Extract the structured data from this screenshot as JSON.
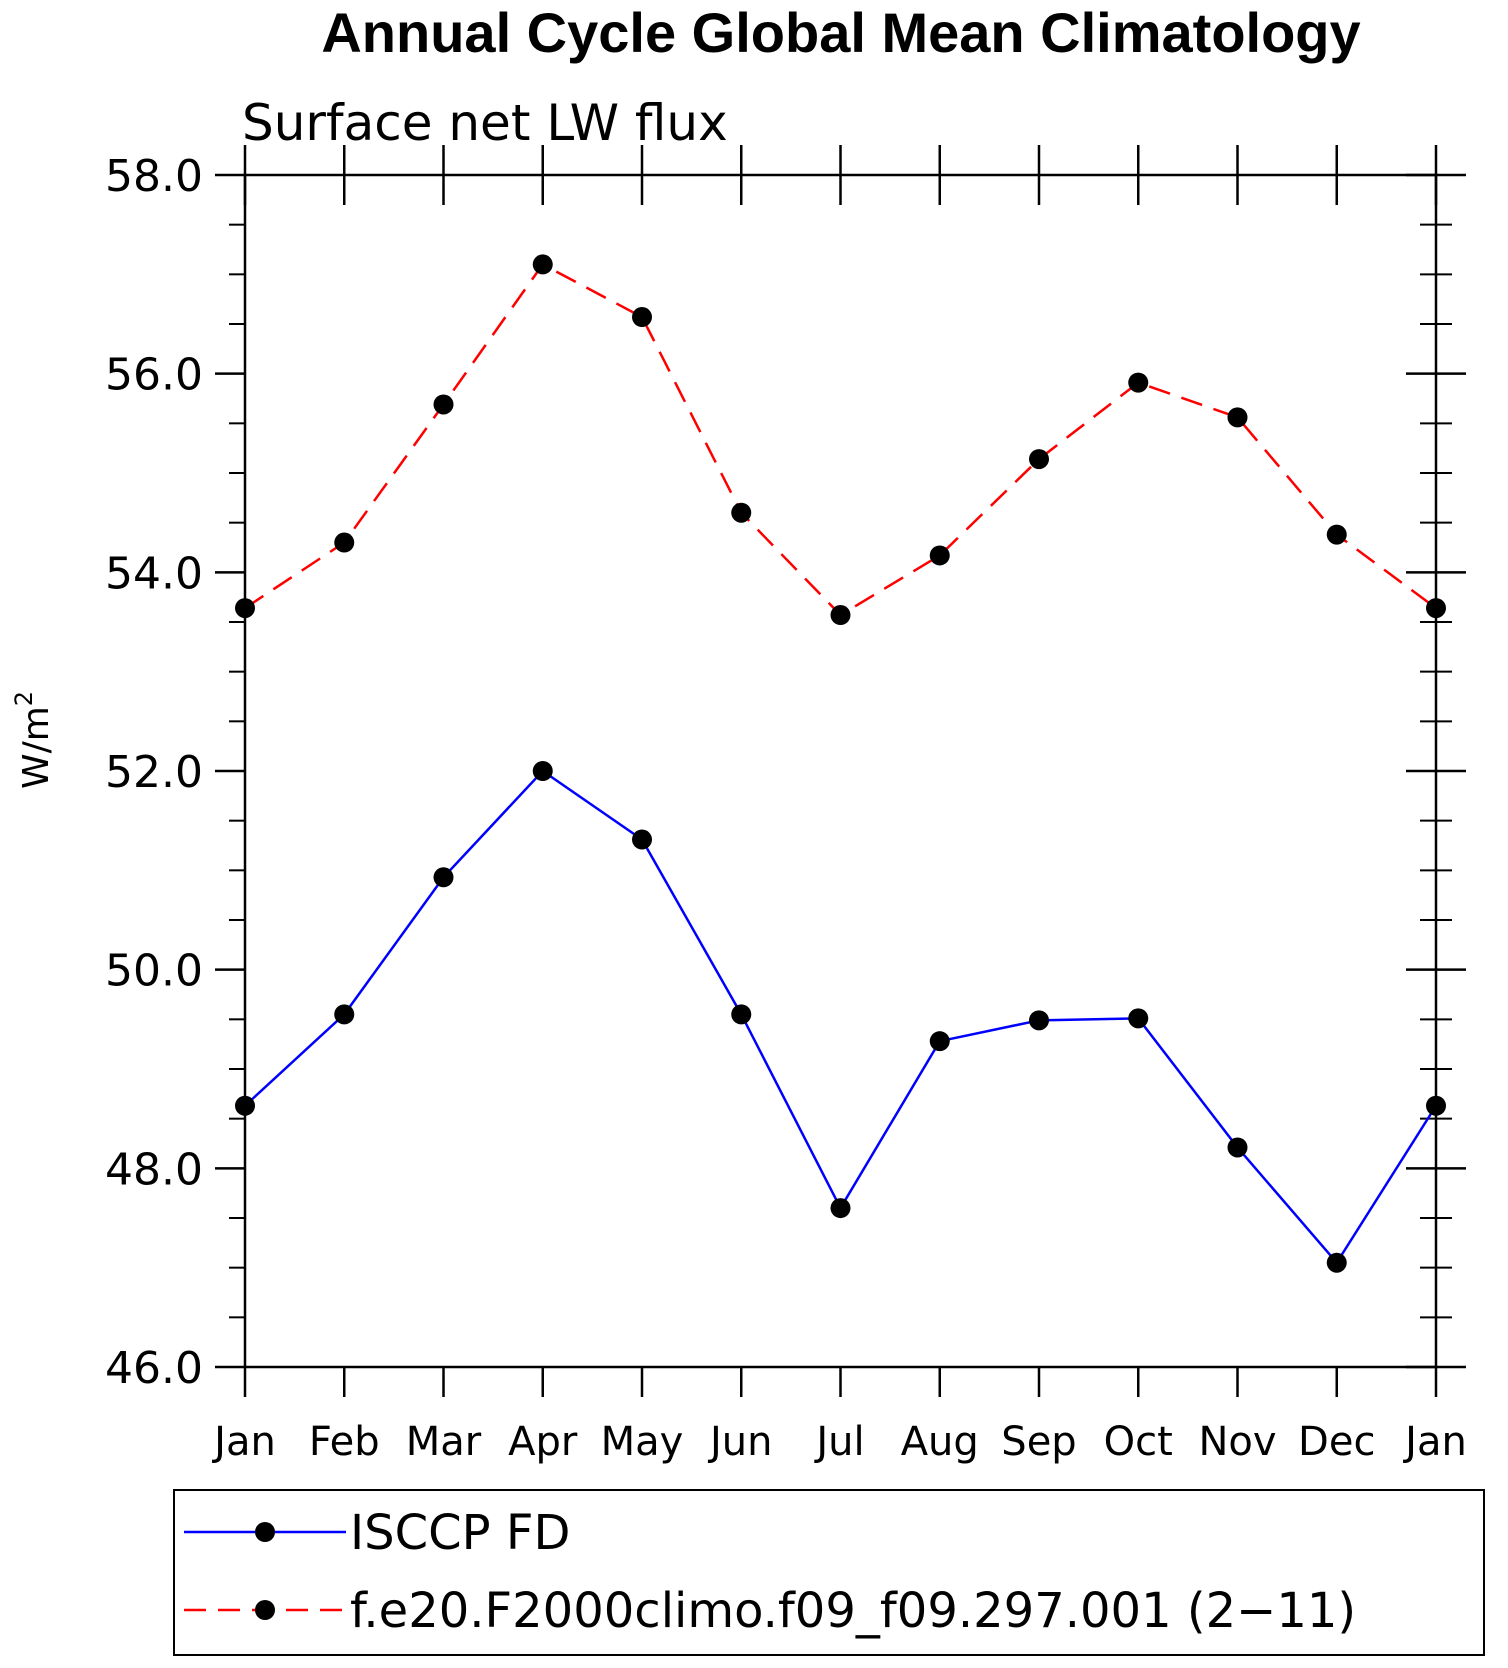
{
  "chart_data": {
    "type": "line",
    "title": "Annual Cycle Global Mean Climatology",
    "subtitle": "Surface net LW flux",
    "ylabel": "W/m",
    "ylabel_superscript": "2",
    "categories": [
      "Jan",
      "Feb",
      "Mar",
      "Apr",
      "May",
      "Jun",
      "Jul",
      "Aug",
      "Sep",
      "Oct",
      "Nov",
      "Dec",
      "Jan"
    ],
    "ylim": [
      46.0,
      58.0
    ],
    "yticks": [
      "46.0",
      "48.0",
      "50.0",
      "52.0",
      "54.0",
      "56.0",
      "58.0"
    ],
    "ytick_values": [
      46,
      48,
      50,
      52,
      54,
      56,
      58
    ],
    "series": [
      {
        "name": "ISCCP FD",
        "color": "#0000ff",
        "dash": "solid",
        "values": [
          48.63,
          49.55,
          50.93,
          52.0,
          51.31,
          49.55,
          47.6,
          49.28,
          49.49,
          49.51,
          48.21,
          47.05,
          48.63
        ]
      },
      {
        "name": "f.e20.F2000climo.f09_f09.297.001 (2−11)",
        "color": "#ff0000",
        "dash": "dashed",
        "values": [
          53.64,
          54.3,
          55.69,
          57.1,
          56.57,
          54.6,
          53.57,
          54.17,
          55.14,
          55.91,
          55.56,
          54.38,
          53.64
        ]
      }
    ],
    "legend_position": "bottom",
    "grid": false
  }
}
